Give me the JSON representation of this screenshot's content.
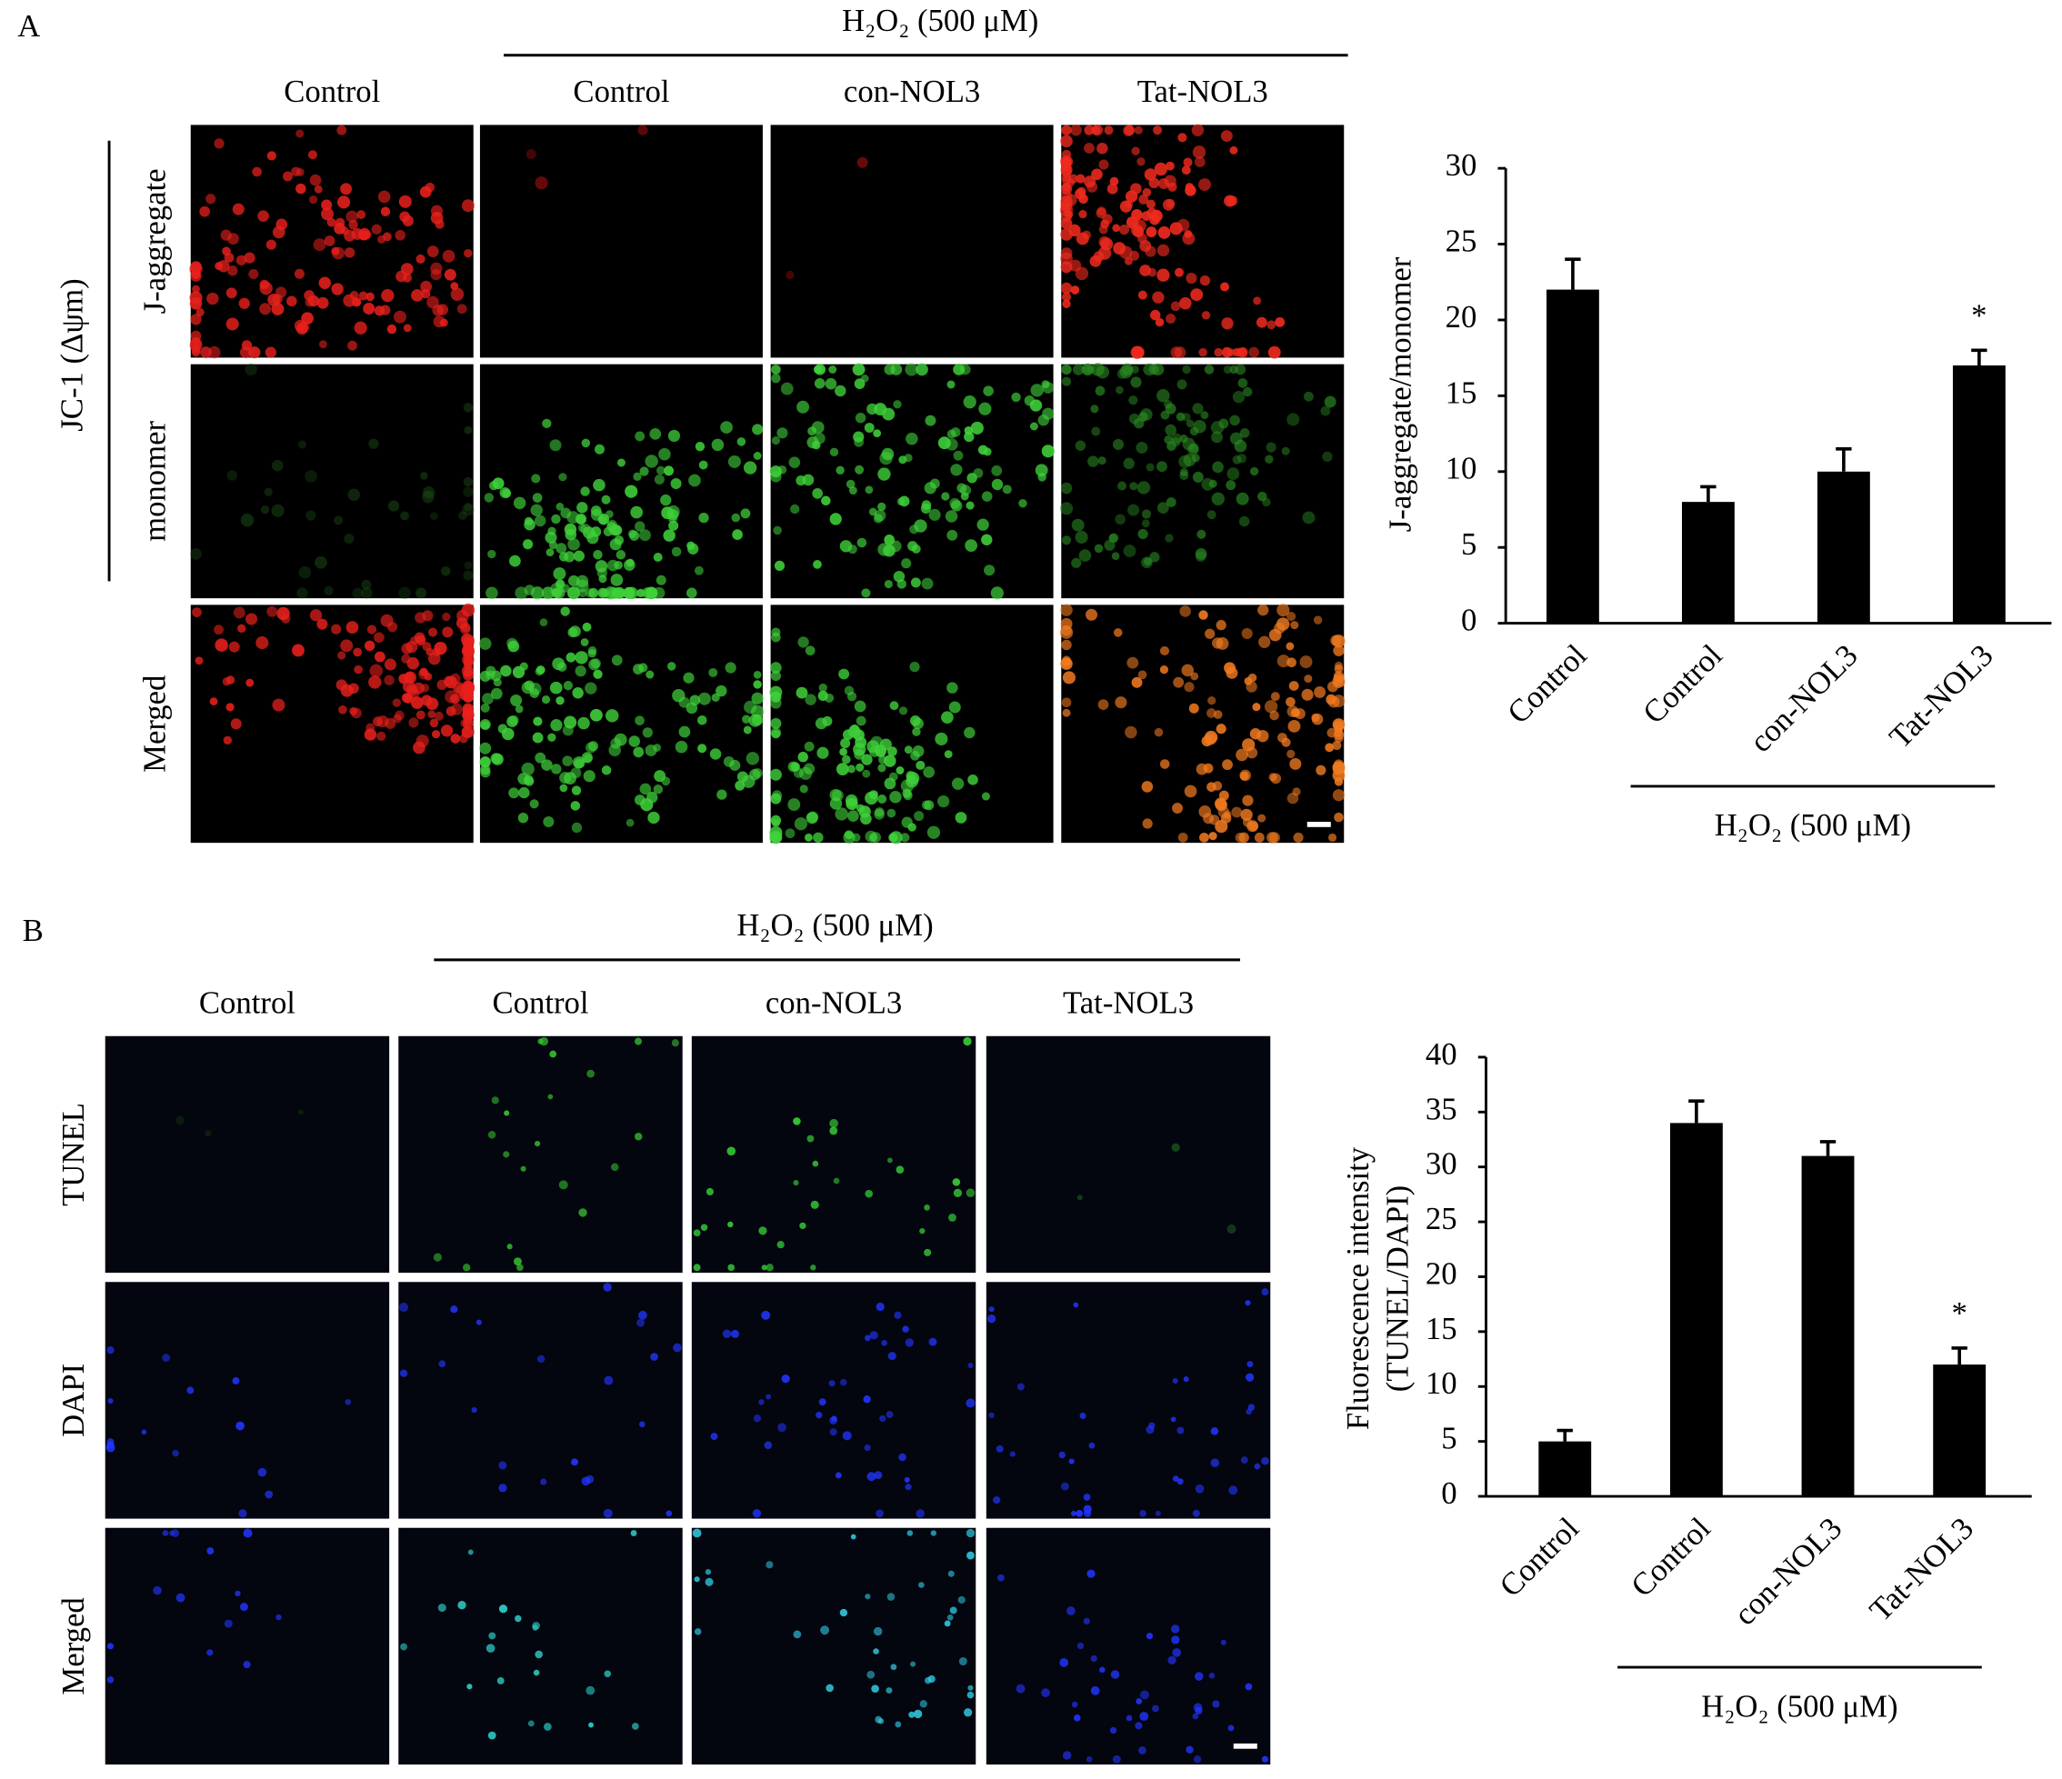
{
  "panels": [
    {
      "label": "A",
      "treatment": "H₂O₂ (500 μM)",
      "side_label": "JC-1 (Δψm)",
      "columns": [
        "Control",
        "Control",
        "con-NOL3",
        "Tat-NOL3"
      ],
      "rows": [
        "J-aggregate",
        "monomer",
        "Merged"
      ]
    },
    {
      "label": "B",
      "treatment": "H₂O₂ (500 μM)",
      "columns": [
        "Control",
        "Control",
        "con-NOL3",
        "Tat-NOL3"
      ],
      "rows": [
        "TUNEL",
        "DAPI",
        "Merged"
      ]
    }
  ],
  "chart_data": [
    {
      "type": "bar",
      "y_label": [
        "J-aggregate/monomer"
      ],
      "categories": [
        "Control",
        "Control",
        "con-NOL3",
        "Tat-NOL3"
      ],
      "values": [
        22,
        8,
        10,
        17
      ],
      "errors": [
        2,
        1,
        1.5,
        1
      ],
      "color": "#000000",
      "ylim": [
        0,
        30
      ],
      "yticks": [
        0,
        5,
        10,
        15,
        20,
        25,
        30
      ],
      "group_label": "H₂O₂ (500 μM)",
      "annotations": [
        {
          "text": "*",
          "x": "Tat-NOL3"
        }
      ]
    },
    {
      "type": "bar",
      "y_label": [
        "Fluorescence intensity",
        "(TUNEL/DAPI)"
      ],
      "categories": [
        "Control",
        "Control",
        "con-NOL3",
        "Tat-NOL3"
      ],
      "values": [
        5,
        34,
        31,
        12
      ],
      "errors": [
        1,
        2,
        1.3,
        1.5
      ],
      "color": "#000000",
      "ylim": [
        0,
        40
      ],
      "yticks": [
        0,
        5,
        10,
        15,
        20,
        25,
        30,
        35,
        40
      ],
      "group_label": "H₂O₂ (500 μM)",
      "annotations": [
        {
          "text": "*",
          "x": "Tat-NOL3"
        }
      ]
    }
  ]
}
